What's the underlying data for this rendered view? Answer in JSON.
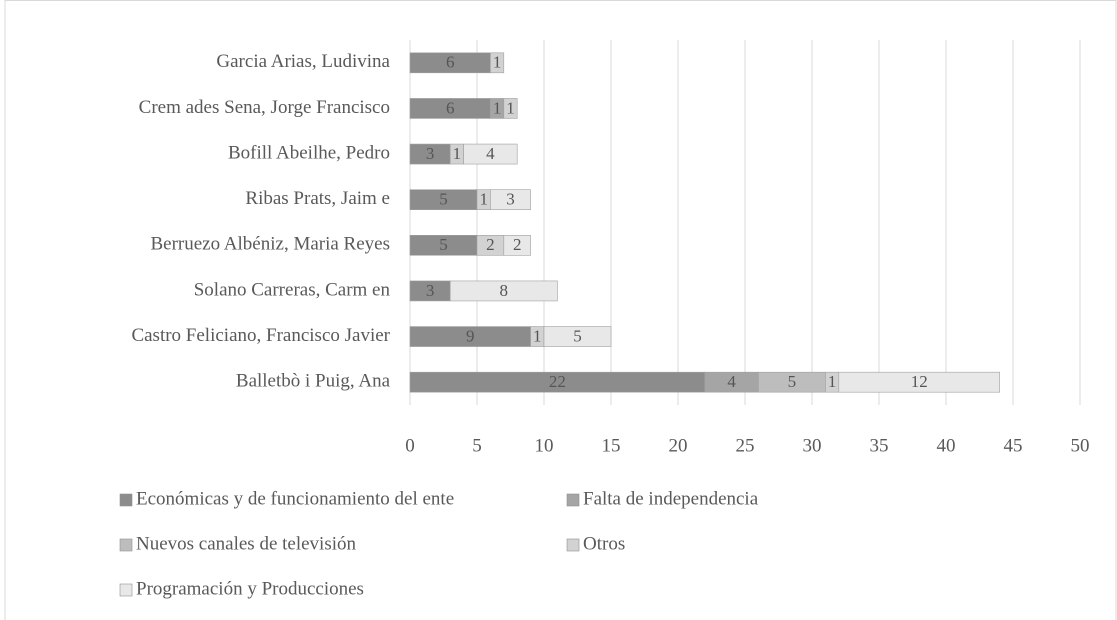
{
  "chart_data": {
    "type": "stacked-bar-horizontal",
    "categories": [
      "Garcia Arias, Ludivina",
      "Crem ades Sena, Jorge Francisco",
      "Bofill Abeilhe, Pedro",
      "Ribas Prats, Jaim e",
      "Berruezo Albéniz, Maria Reyes",
      "Solano Carreras, Carm en",
      "Castro Feliciano, Francisco Javier",
      "Balletbò i Puig, Ana"
    ],
    "series": [
      {
        "name": "Económicas y de funcionamiento del ente",
        "color": "#8c8c8c",
        "values": [
          6,
          6,
          3,
          5,
          5,
          3,
          9,
          22
        ]
      },
      {
        "name": "Falta de independencia",
        "color": "#a5a5a5",
        "values": [
          null,
          1,
          null,
          null,
          null,
          null,
          null,
          4
        ]
      },
      {
        "name": "Nuevos canales de televisión",
        "color": "#bdbdbd",
        "values": [
          null,
          null,
          null,
          null,
          null,
          null,
          null,
          5
        ]
      },
      {
        "name": "Otros",
        "color": "#d2d2d2",
        "values": [
          1,
          1,
          1,
          1,
          2,
          null,
          1,
          1
        ]
      },
      {
        "name": "Programación y Producciones",
        "color": "#e8e8e8",
        "values": [
          null,
          null,
          4,
          3,
          2,
          8,
          5,
          12
        ]
      }
    ],
    "xlim": [
      0,
      50
    ],
    "xticks": [
      0,
      5,
      10,
      15,
      20,
      25,
      30,
      35,
      40,
      45,
      50
    ],
    "grid": true
  }
}
